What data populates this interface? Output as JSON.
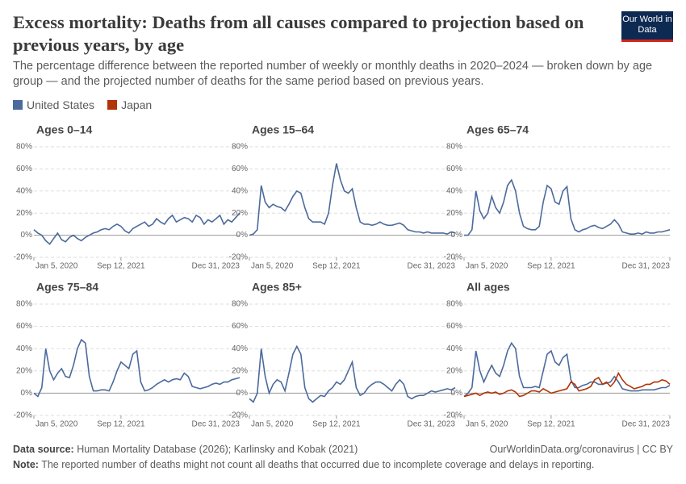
{
  "chart_data": {
    "type": "line",
    "title": "Excess mortality: Deaths from all causes compared to projection based on previous years, by age",
    "subtitle": "The percentage difference between the reported number of weekly or monthly deaths in 2020–2024 — broken down by age group — and the projected number of deaths for the same period based on previous years.",
    "logo": "Our World in Data",
    "series": [
      {
        "name": "United States",
        "color": "#4c6a9c"
      },
      {
        "name": "Japan",
        "color": "#b13507"
      }
    ],
    "x": [
      "2020-01-05",
      "2020-02-02",
      "2020-03-01",
      "2020-03-29",
      "2020-04-26",
      "2020-05-24",
      "2020-06-21",
      "2020-07-19",
      "2020-08-16",
      "2020-09-13",
      "2020-10-11",
      "2020-11-08",
      "2020-12-06",
      "2021-01-03",
      "2021-01-31",
      "2021-02-28",
      "2021-03-28",
      "2021-04-25",
      "2021-05-23",
      "2021-06-20",
      "2021-07-18",
      "2021-08-15",
      "2021-09-12",
      "2021-10-10",
      "2021-11-07",
      "2021-12-05",
      "2022-01-02",
      "2022-01-30",
      "2022-02-27",
      "2022-03-27",
      "2022-04-24",
      "2022-05-22",
      "2022-06-19",
      "2022-07-17",
      "2022-08-14",
      "2022-09-11",
      "2022-10-09",
      "2022-11-06",
      "2022-12-04",
      "2023-01-01",
      "2023-01-29",
      "2023-02-26",
      "2023-03-26",
      "2023-04-23",
      "2023-05-21",
      "2023-06-18",
      "2023-07-16",
      "2023-08-13",
      "2023-09-10",
      "2023-10-08",
      "2023-11-05",
      "2023-12-03",
      "2023-12-31"
    ],
    "xlim": [
      "2020-01-05",
      "2023-12-31"
    ],
    "xticks": [
      {
        "value": "2020-01-05",
        "label": "Jan 5, 2020"
      },
      {
        "value": "2021-09-12",
        "label": "Sep 12, 2021"
      },
      {
        "value": "2023-12-31",
        "label": "Dec 31, 2023"
      }
    ],
    "ylim": [
      -20,
      80
    ],
    "yticks": [
      {
        "value": -20,
        "label": "-20%"
      },
      {
        "value": 0,
        "label": "0%"
      },
      {
        "value": 20,
        "label": "20%"
      },
      {
        "value": 40,
        "label": "40%"
      },
      {
        "value": 60,
        "label": "60%"
      },
      {
        "value": 80,
        "label": "80%"
      }
    ],
    "grid": true,
    "panels": [
      {
        "title": "Ages 0–14",
        "values": [
          [
            5,
            2,
            0,
            -5,
            -8,
            -3,
            2,
            -4,
            -6,
            -2,
            0,
            -3,
            -5,
            -2,
            0,
            2,
            3,
            5,
            6,
            5,
            8,
            10,
            8,
            4,
            2,
            6,
            8,
            10,
            12,
            8,
            10,
            15,
            12,
            10,
            15,
            18,
            12,
            14,
            16,
            15,
            12,
            18,
            16,
            10,
            14,
            12,
            15,
            18,
            10,
            14,
            12,
            16,
            20
          ]
        ]
      },
      {
        "title": "Ages 15–64",
        "values": [
          [
            0,
            1,
            5,
            45,
            30,
            25,
            28,
            26,
            25,
            22,
            28,
            35,
            40,
            38,
            25,
            15,
            12,
            12,
            12,
            10,
            20,
            45,
            65,
            50,
            40,
            38,
            42,
            25,
            12,
            10,
            10,
            9,
            10,
            12,
            10,
            9,
            9,
            10,
            11,
            9,
            5,
            4,
            3,
            3,
            2,
            3,
            2,
            2,
            2,
            2,
            1,
            3,
            2
          ]
        ]
      },
      {
        "title": "Ages 65–74",
        "values": [
          [
            0,
            0,
            5,
            40,
            22,
            15,
            20,
            35,
            25,
            20,
            30,
            45,
            50,
            40,
            20,
            8,
            6,
            5,
            5,
            8,
            30,
            45,
            42,
            30,
            28,
            40,
            44,
            15,
            5,
            3,
            5,
            6,
            8,
            9,
            7,
            6,
            8,
            10,
            14,
            10,
            3,
            2,
            1,
            1,
            2,
            1,
            3,
            2,
            2,
            3,
            3,
            4,
            5
          ]
        ]
      },
      {
        "title": "Ages 75–84",
        "values": [
          [
            0,
            -3,
            5,
            40,
            20,
            12,
            18,
            22,
            15,
            14,
            25,
            40,
            48,
            45,
            15,
            2,
            2,
            3,
            3,
            2,
            10,
            20,
            28,
            25,
            22,
            35,
            38,
            10,
            2,
            3,
            5,
            8,
            10,
            12,
            10,
            12,
            13,
            12,
            18,
            15,
            6,
            5,
            4,
            5,
            6,
            8,
            9,
            8,
            10,
            10,
            12,
            13,
            14
          ]
        ]
      },
      {
        "title": "Ages 85+",
        "values": [
          [
            -5,
            -8,
            0,
            40,
            15,
            0,
            8,
            12,
            10,
            2,
            18,
            35,
            42,
            35,
            5,
            -5,
            -8,
            -5,
            -2,
            -3,
            2,
            5,
            10,
            8,
            12,
            20,
            28,
            5,
            -2,
            0,
            5,
            8,
            10,
            10,
            8,
            5,
            2,
            8,
            12,
            8,
            -3,
            -5,
            -3,
            -2,
            -2,
            0,
            2,
            1,
            2,
            3,
            4,
            3,
            5
          ]
        ]
      },
      {
        "title": "All ages",
        "values": [
          [
            -3,
            0,
            5,
            38,
            20,
            10,
            18,
            25,
            18,
            15,
            25,
            38,
            45,
            40,
            15,
            5,
            5,
            5,
            6,
            5,
            20,
            35,
            38,
            28,
            25,
            32,
            35,
            12,
            5,
            5,
            7,
            8,
            10,
            10,
            8,
            8,
            9,
            10,
            15,
            10,
            4,
            3,
            2,
            2,
            2,
            3,
            3,
            3,
            3,
            4,
            5,
            5,
            7
          ],
          [
            -3,
            -2,
            -1,
            0,
            -2,
            0,
            1,
            0,
            1,
            -1,
            0,
            2,
            3,
            1,
            -3,
            -2,
            0,
            2,
            2,
            1,
            4,
            2,
            0,
            1,
            2,
            3,
            4,
            10,
            8,
            2,
            3,
            4,
            6,
            12,
            14,
            8,
            10,
            6,
            10,
            18,
            12,
            8,
            6,
            4,
            5,
            6,
            8,
            8,
            10,
            10,
            12,
            11,
            8
          ]
        ]
      }
    ],
    "source_label": "Data source:",
    "source": "Human Mortality Database (2026); Karlinsky and Kobak (2021)",
    "url": "OurWorldinData.org/coronavirus | CC BY",
    "note_label": "Note:",
    "note": "The reported number of deaths might not count all deaths that occurred due to incomplete coverage and delays in reporting."
  }
}
